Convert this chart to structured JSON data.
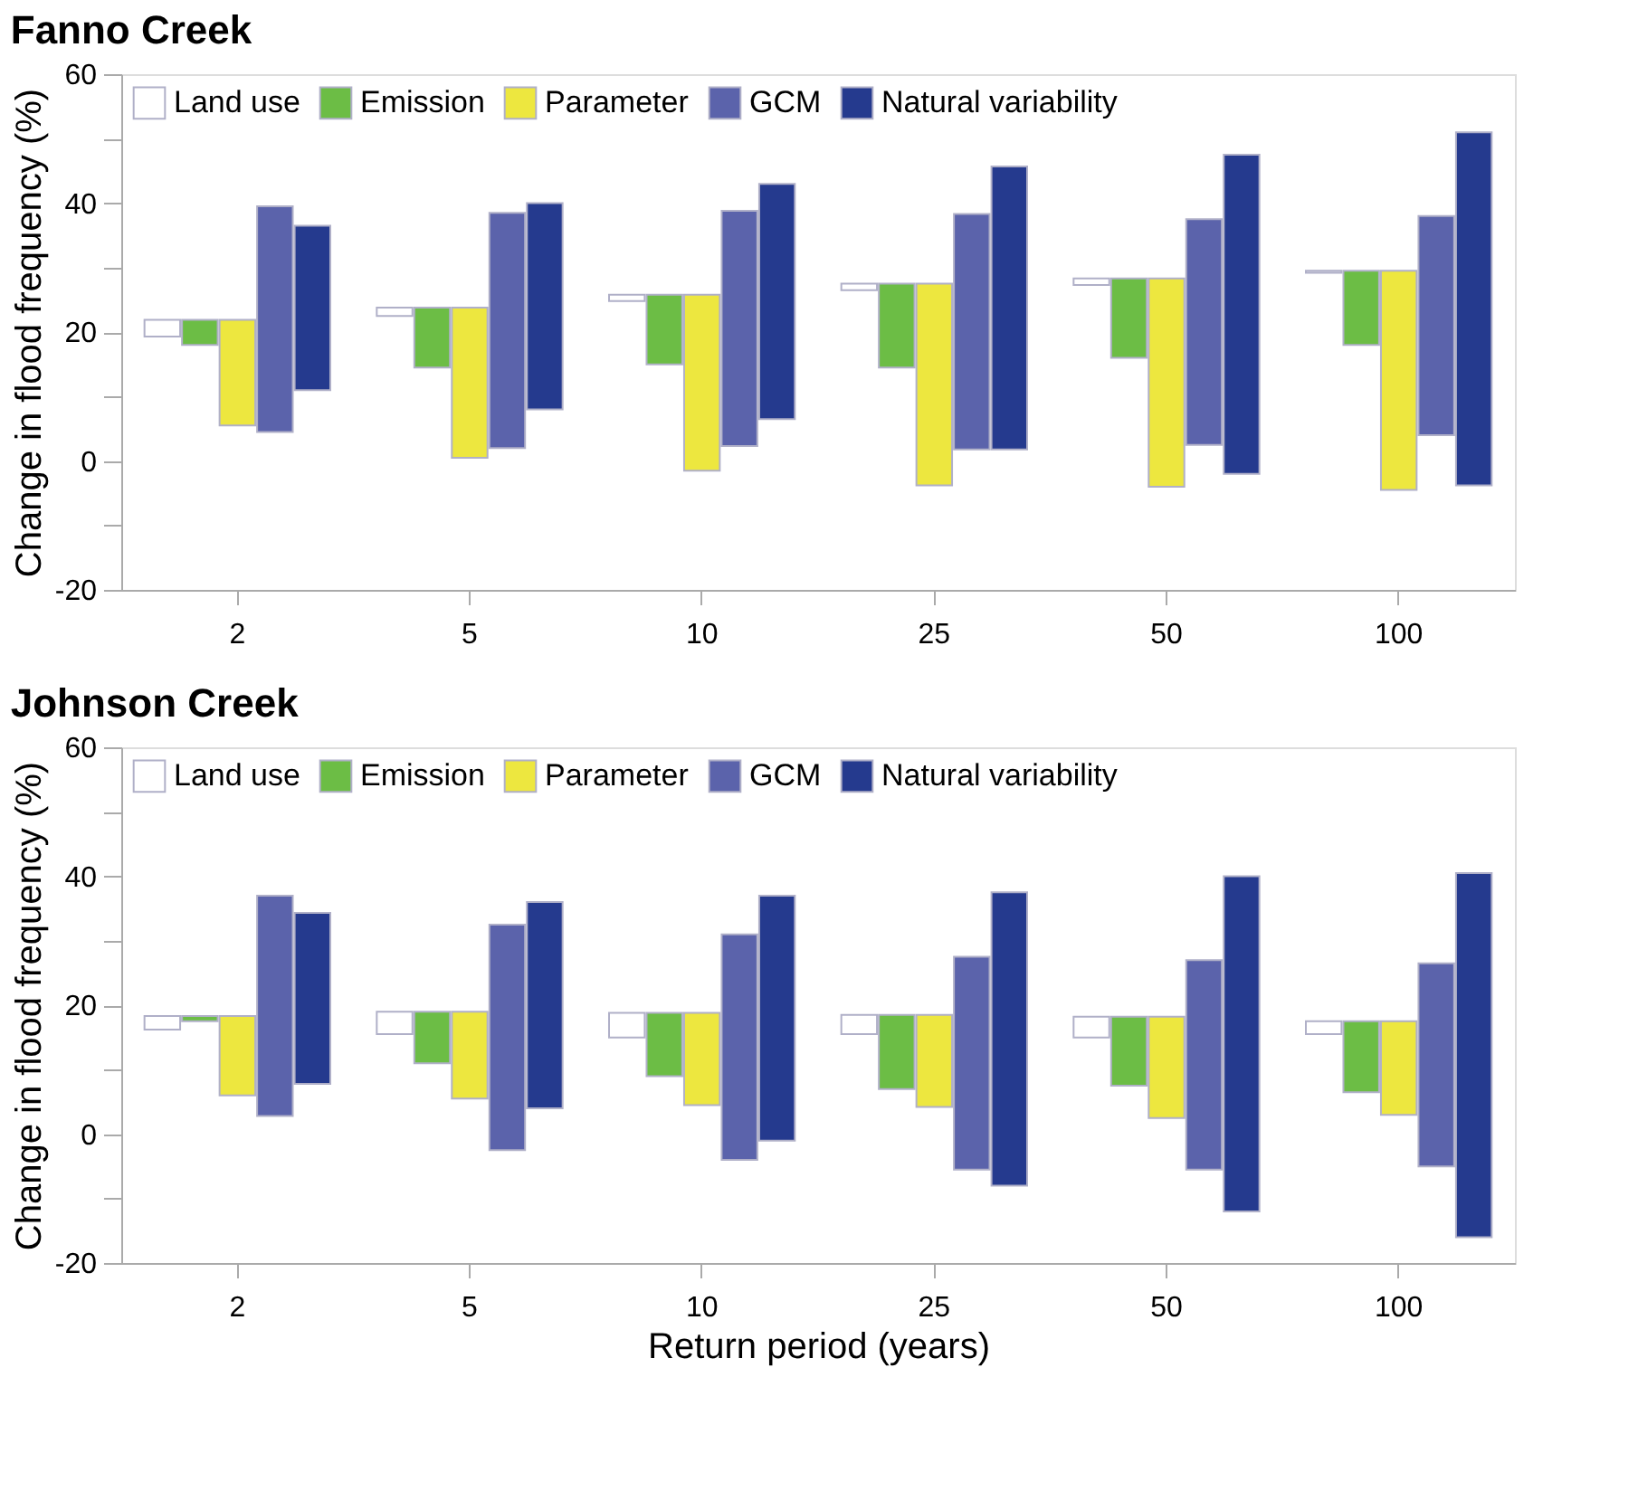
{
  "chart_data": [
    {
      "type": "bar",
      "title": "Fanno Creek",
      "ylabel": "Change in flood frequency (%)",
      "categories": [
        "2",
        "5",
        "10",
        "25",
        "50",
        "100"
      ],
      "legend": "top left",
      "grid": false,
      "ylim": [
        -20,
        60
      ],
      "yticks": [
        -20,
        {
          "value": -10,
          "label": null
        },
        0,
        {
          "value": 10,
          "label": null
        },
        20,
        {
          "value": 30,
          "label": null
        },
        40,
        {
          "value": 50,
          "label": null
        },
        60
      ],
      "series": [
        {
          "name": "Land use",
          "color": "#ffffff",
          "base": [
            19.3,
            22.5,
            24.8,
            26.5,
            27.3,
            29.2
          ],
          "values": [
            2.6,
            1.3,
            1.0,
            1.0,
            1.0,
            0.3
          ]
        },
        {
          "name": "Emission",
          "color": "#6cbd45",
          "base": [
            18,
            14.5,
            15,
            14.5,
            16,
            18
          ],
          "values": [
            3.9,
            9.3,
            10.8,
            13.0,
            12.3,
            11.5
          ]
        },
        {
          "name": "Parameter",
          "color": "#ede73f",
          "base": [
            5.5,
            0.5,
            -1.5,
            -3.8,
            -4,
            -4.5
          ],
          "values": [
            16.4,
            23.3,
            27.3,
            31.3,
            32.3,
            34.0
          ]
        },
        {
          "name": "GCM",
          "color": "#5b63ab",
          "base": [
            4.5,
            2,
            2.3,
            1.8,
            2.5,
            4
          ],
          "values": [
            35.0,
            36.5,
            36.5,
            36.5,
            35.0,
            34.0
          ]
        },
        {
          "name": "Natural variability",
          "color": "#253a8e",
          "base": [
            11,
            8,
            6.5,
            1.8,
            -2,
            -3.8
          ],
          "values": [
            25.5,
            32.0,
            36.5,
            43.9,
            49.5,
            54.8
          ]
        }
      ]
    },
    {
      "type": "bar",
      "title": "Johnson Creek",
      "ylabel": "Change in flood frequency (%)",
      "xlabel": "Return period (years)",
      "categories": [
        "2",
        "5",
        "10",
        "25",
        "50",
        "100"
      ],
      "legend": "top left",
      "grid": false,
      "ylim": [
        -20,
        60
      ],
      "yticks": [
        -20,
        {
          "value": -10,
          "label": null
        },
        0,
        {
          "value": 10,
          "label": null
        },
        20,
        {
          "value": 30,
          "label": null
        },
        40,
        {
          "value": 50,
          "label": null
        },
        60
      ],
      "series": [
        {
          "name": "Land use",
          "color": "#ffffff",
          "base": [
            16.2,
            15.5,
            15,
            15.5,
            15,
            15.5
          ],
          "values": [
            2.1,
            3.5,
            3.8,
            3.0,
            3.2,
            2.0
          ]
        },
        {
          "name": "Emission",
          "color": "#6cbd45",
          "base": [
            17.5,
            11,
            9,
            7,
            7.5,
            6.5
          ],
          "values": [
            0.8,
            8.0,
            9.8,
            11.5,
            10.7,
            11.0
          ]
        },
        {
          "name": "Parameter",
          "color": "#ede73f",
          "base": [
            6,
            5.5,
            4.5,
            4.2,
            2.5,
            3
          ],
          "values": [
            12.3,
            13.5,
            14.3,
            14.3,
            15.7,
            14.5
          ]
        },
        {
          "name": "GCM",
          "color": "#5b63ab",
          "base": [
            2.8,
            -2.5,
            -4,
            -5.5,
            -5.5,
            -5
          ],
          "values": [
            34.2,
            35.0,
            35.0,
            33.0,
            32.5,
            31.5
          ]
        },
        {
          "name": "Natural variability",
          "color": "#253a8e",
          "base": [
            7.8,
            4,
            -1,
            -8,
            -12,
            -16
          ],
          "values": [
            26.5,
            32.0,
            38.0,
            45.5,
            52.0,
            56.5
          ]
        }
      ]
    }
  ]
}
